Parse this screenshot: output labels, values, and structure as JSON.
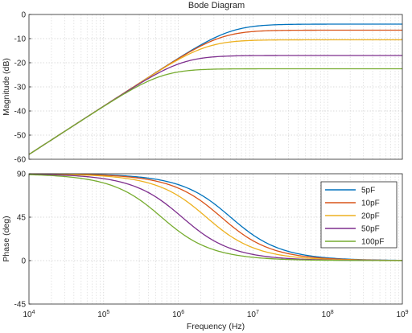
{
  "chart_data": {
    "type": "line",
    "title": "Bode Diagram",
    "xlabel": "Frequency  (Hz)",
    "x_scale": "log",
    "xlim": [
      10000,
      1000000000
    ],
    "x_tick_labels": [
      {
        "base": "10",
        "exp": "4"
      },
      {
        "base": "10",
        "exp": "5"
      },
      {
        "base": "10",
        "exp": "6"
      },
      {
        "base": "10",
        "exp": "7"
      },
      {
        "base": "10",
        "exp": "8"
      },
      {
        "base": "10",
        "exp": "9"
      }
    ],
    "grid": true,
    "legend_placement": "right (lower plot)",
    "subplots": [
      {
        "name": "magnitude",
        "ylabel": "Magnitude (dB)",
        "ylim": [
          -60,
          0
        ],
        "y_ticks": [
          "0",
          "-10",
          "-20",
          "-30",
          "-40",
          "-50",
          "-60"
        ]
      },
      {
        "name": "phase",
        "ylabel": "Phase (deg)",
        "ylim": [
          -45,
          90
        ],
        "y_ticks": [
          "90",
          "45",
          "0",
          "-45"
        ]
      }
    ],
    "series": [
      {
        "name": "5pF",
        "color": "#0072BD",
        "hf_magnitude_db": -4,
        "low_corner_hz": 120000000,
        "high_corner_hz": 2800000
      },
      {
        "name": "10pF",
        "color": "#D95319",
        "hf_magnitude_db": -6.5,
        "low_corner_hz": 120000000,
        "high_corner_hz": 2100000
      },
      {
        "name": "20pF",
        "color": "#EDB120",
        "hf_magnitude_db": -10.5,
        "low_corner_hz": 120000000,
        "high_corner_hz": 1500000
      },
      {
        "name": "50pF",
        "color": "#7E2F8E",
        "hf_magnitude_db": -17,
        "low_corner_hz": 120000000,
        "high_corner_hz": 900000
      },
      {
        "name": "100pF",
        "color": "#77AC30",
        "hf_magnitude_db": -22.5,
        "low_corner_hz": 120000000,
        "high_corner_hz": 600000
      }
    ]
  }
}
